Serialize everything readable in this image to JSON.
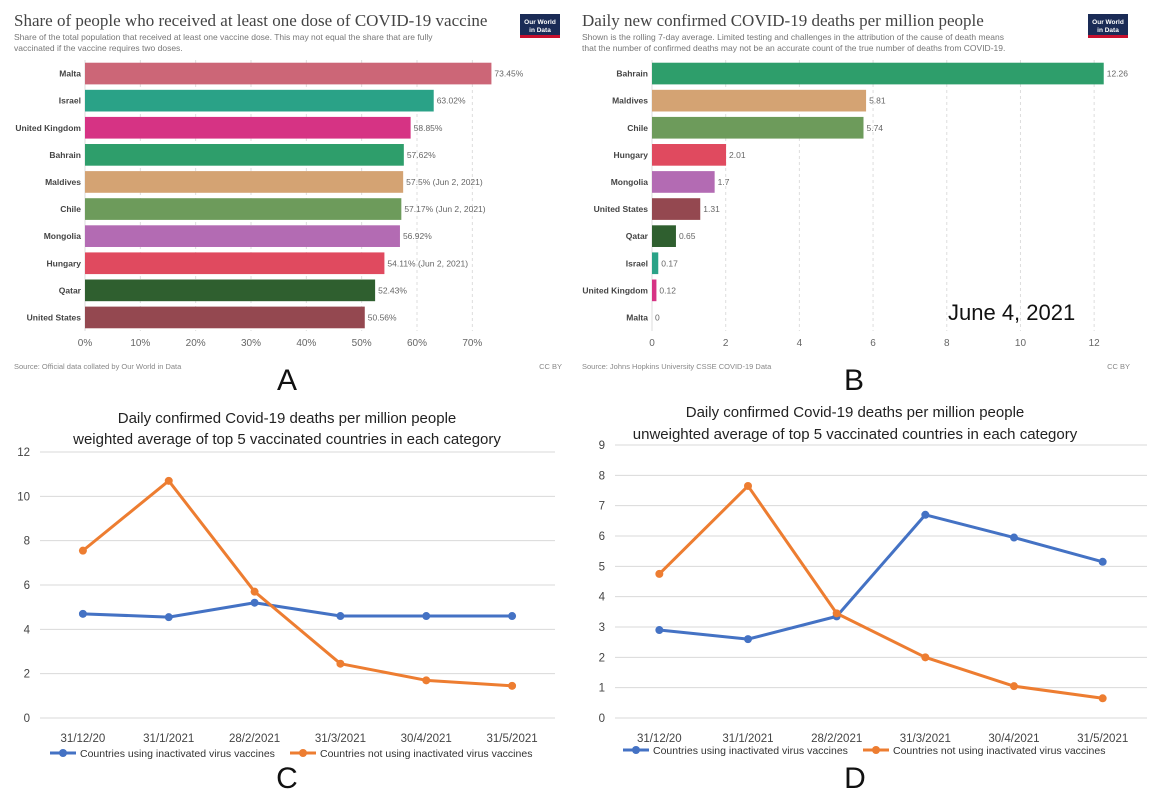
{
  "panels": {
    "A": {
      "letter": "A",
      "title": "Share of people who received at least one dose of COVID-19 vaccine",
      "subtitle_lines": [
        "Share of the total population that received at least one vaccine dose. This may not equal the share that are fully",
        "vaccinated if the vaccine requires two doses."
      ],
      "source": "Source: Official data collated by Our World in Data",
      "license": "CC BY",
      "logo_lines": [
        "Our World",
        "in Data"
      ]
    },
    "B": {
      "letter": "B",
      "title": "Daily new confirmed COVID-19 deaths per million people",
      "subtitle_lines": [
        "Shown is the rolling 7-day average. Limited testing and challenges in the attribution of the cause of death means",
        "that the number of confirmed deaths may not be an accurate count of the true number of deaths from COVID-19."
      ],
      "source": "Source: Johns Hopkins University CSSE COVID-19 Data",
      "license": "CC BY",
      "date_stamp": "June 4, 2021",
      "logo_lines": [
        "Our World",
        "in Data"
      ]
    },
    "C": {
      "letter": "C",
      "title_lines": [
        "Daily confirmed Covid-19 deaths per million people",
        "weighted average of top 5 vaccinated countries in each category"
      ]
    },
    "D": {
      "letter": "D",
      "title_lines": [
        "Daily confirmed Covid-19 deaths per million people",
        "unweighted average of top 5 vaccinated countries in each category"
      ]
    }
  },
  "colors": {
    "logo_bg": "#1a2b56",
    "logo_stripe": "#c8102e",
    "series_inactivated": "#4472c4",
    "series_not_inactivated": "#ed7d31",
    "grid": "#d9d9d9",
    "owid_grid": "#dddddd"
  },
  "chart_data": [
    {
      "id": "A",
      "type": "bar",
      "orientation": "horizontal",
      "title": "Share of people who received at least one dose of COVID-19 vaccine",
      "categories": [
        "Malta",
        "Israel",
        "United Kingdom",
        "Bahrain",
        "Maldives",
        "Chile",
        "Mongolia",
        "Hungary",
        "Qatar",
        "United States"
      ],
      "values": [
        73.45,
        63.02,
        58.85,
        57.62,
        57.5,
        57.17,
        56.92,
        54.11,
        52.43,
        50.56
      ],
      "value_labels": [
        "73.45%",
        "63.02%",
        "58.85%",
        "57.62%",
        "57.5% (Jun 2, 2021)",
        "57.17% (Jun 2, 2021)",
        "56.92%",
        "54.11% (Jun 2, 2021)",
        "52.43%",
        "50.56%"
      ],
      "bar_colors": [
        "#cc6677",
        "#2aa287",
        "#d63384",
        "#2e9e6b",
        "#d4a373",
        "#6d9b5b",
        "#b36bb3",
        "#e04a5f",
        "#2f5f2f",
        "#944850"
      ],
      "xlim": [
        0,
        75
      ],
      "xticks": [
        0,
        10,
        20,
        30,
        40,
        50,
        60,
        70
      ],
      "xtick_labels": [
        "0%",
        "10%",
        "20%",
        "30%",
        "40%",
        "50%",
        "60%",
        "70%"
      ],
      "grid": true
    },
    {
      "id": "B",
      "type": "bar",
      "orientation": "horizontal",
      "title": "Daily new confirmed COVID-19 deaths per million people",
      "categories": [
        "Bahrain",
        "Maldives",
        "Chile",
        "Hungary",
        "Mongolia",
        "United States",
        "Qatar",
        "Israel",
        "United Kingdom",
        "Malta"
      ],
      "values": [
        12.26,
        5.81,
        5.74,
        2.01,
        1.7,
        1.31,
        0.65,
        0.17,
        0.12,
        0
      ],
      "value_labels": [
        "12.26",
        "5.81",
        "5.74",
        "2.01",
        "1.7",
        "1.31",
        "0.65",
        "0.17",
        "0.12",
        "0"
      ],
      "bar_colors": [
        "#2e9e6b",
        "#d4a373",
        "#6d9b5b",
        "#e04a5f",
        "#b36bb3",
        "#944850",
        "#2f5f2f",
        "#2aa287",
        "#d63384",
        "#cc6677"
      ],
      "xlim": [
        0,
        13
      ],
      "xticks": [
        0,
        2,
        4,
        6,
        8,
        10,
        12
      ],
      "xtick_labels": [
        "0",
        "2",
        "4",
        "6",
        "8",
        "10",
        "12"
      ],
      "grid": true
    },
    {
      "id": "C",
      "type": "line",
      "title": "Daily confirmed Covid-19 deaths per million people",
      "subtitle": "weighted average of top 5 vaccinated countries in each category",
      "categories": [
        "31/12/20",
        "31/1/2021",
        "28/2/2021",
        "31/3/2021",
        "30/4/2021",
        "31/5/2021"
      ],
      "series": [
        {
          "name": "Countries using inactivated virus vaccines",
          "values": [
            4.7,
            4.55,
            5.2,
            4.6,
            4.6,
            4.6
          ],
          "color": "#4472c4"
        },
        {
          "name": "Countries not using inactivated virus vaccines",
          "values": [
            7.55,
            10.7,
            5.7,
            2.45,
            1.7,
            1.45
          ],
          "color": "#ed7d31"
        }
      ],
      "ylim": [
        0,
        12
      ],
      "yticks": [
        0,
        2,
        4,
        6,
        8,
        10,
        12
      ],
      "grid": true,
      "legend": "bottom"
    },
    {
      "id": "D",
      "type": "line",
      "title": "Daily confirmed Covid-19 deaths per million people",
      "subtitle": "unweighted average of top 5 vaccinated countries in each category",
      "categories": [
        "31/12/20",
        "31/1/2021",
        "28/2/2021",
        "31/3/2021",
        "30/4/2021",
        "31/5/2021"
      ],
      "series": [
        {
          "name": "Countries using inactivated virus vaccines",
          "values": [
            2.9,
            2.6,
            3.35,
            6.7,
            5.95,
            5.15
          ],
          "color": "#4472c4"
        },
        {
          "name": "Countries not using inactivated virus vaccines",
          "values": [
            4.75,
            7.65,
            3.45,
            2.0,
            1.05,
            0.65
          ],
          "color": "#ed7d31"
        }
      ],
      "ylim": [
        0,
        9
      ],
      "yticks": [
        0,
        1,
        2,
        3,
        4,
        5,
        6,
        7,
        8,
        9
      ],
      "grid": true,
      "legend": "bottom"
    }
  ]
}
